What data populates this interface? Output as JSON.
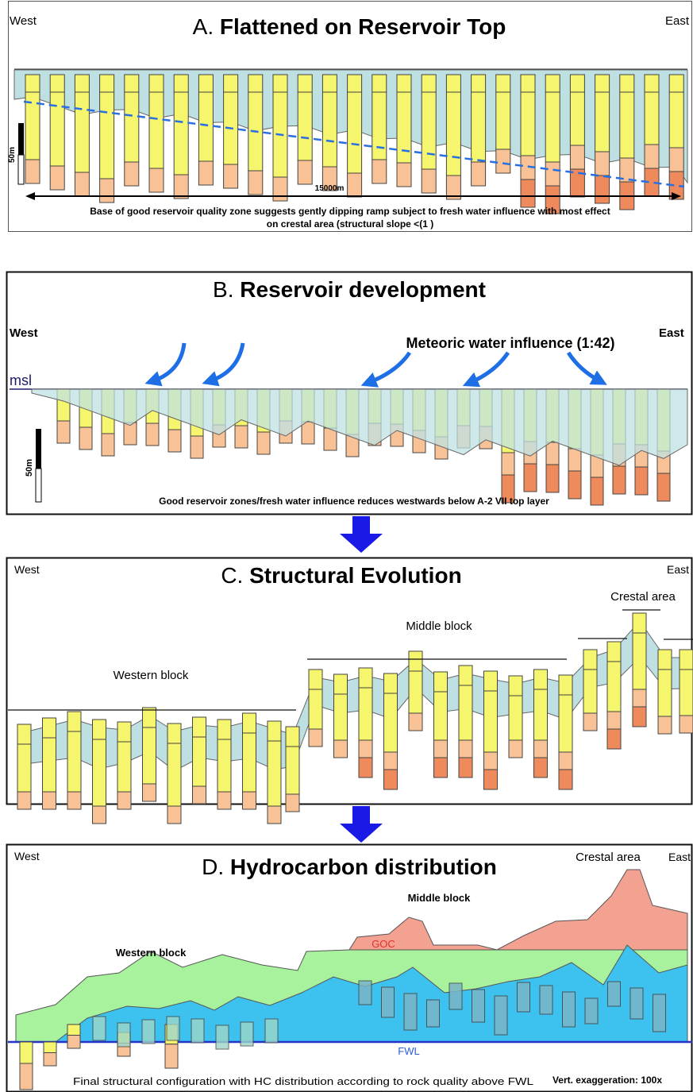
{
  "panel_a": {
    "west": "West",
    "east": "East",
    "label": "A.",
    "title": "Flattened on Reservoir Top",
    "scale": "50m",
    "distance": "15000m",
    "caption": [
      "Base of good reservoir quality zone suggests gently dipping ramp subject to fresh water influence with most effect",
      "on crestal area (structural slope <(1  )"
    ]
  },
  "panel_b": {
    "label": "B.",
    "title": "Reservoir development",
    "west": "West",
    "east": "East",
    "annotation": "Meteoric water influence (1:42)",
    "msl": "msl",
    "scale": "50m",
    "caption": "Good reservoir zones/fresh water influence reduces westwards below A-2 VII top layer"
  },
  "panel_c": {
    "west": "West",
    "label": "C.",
    "title": "Structural Evolution",
    "east": "East",
    "crestal": "Crestal area",
    "middle": "Middle block",
    "western": "Western block"
  },
  "panel_d": {
    "west": "West",
    "label": "D.",
    "title": "Hydrocarbon distribution",
    "crestal": "Crestal area",
    "east": "East",
    "middle": "Middle block",
    "western": "Western block",
    "goc": "GOC",
    "fwl": "FWL",
    "caption": "Final structural configuration with HC distribution according to rock quality above FWL",
    "exaggeration": "Vert. exaggeration: 100x"
  }
}
